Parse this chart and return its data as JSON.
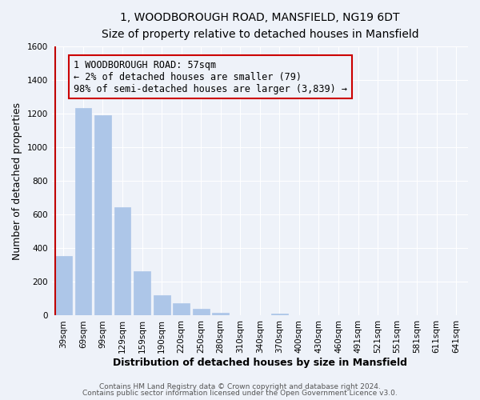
{
  "title": "1, WOODBOROUGH ROAD, MANSFIELD, NG19 6DT",
  "subtitle": "Size of property relative to detached houses in Mansfield",
  "xlabel": "Distribution of detached houses by size in Mansfield",
  "ylabel": "Number of detached properties",
  "bin_labels": [
    "39sqm",
    "69sqm",
    "99sqm",
    "129sqm",
    "159sqm",
    "190sqm",
    "220sqm",
    "250sqm",
    "280sqm",
    "310sqm",
    "340sqm",
    "370sqm",
    "400sqm",
    "430sqm",
    "460sqm",
    "491sqm",
    "521sqm",
    "551sqm",
    "581sqm",
    "611sqm",
    "641sqm"
  ],
  "bar_values": [
    355,
    1235,
    1190,
    645,
    265,
    120,
    75,
    38,
    18,
    0,
    0,
    14,
    0,
    0,
    0,
    0,
    0,
    0,
    0,
    0,
    0
  ],
  "bar_color": "#adc6e8",
  "highlight_bar_color": "#c00000",
  "ylim": [
    0,
    1600
  ],
  "yticks": [
    0,
    200,
    400,
    600,
    800,
    1000,
    1200,
    1400,
    1600
  ],
  "annotation_line1": "1 WOODBOROUGH ROAD: 57sqm",
  "annotation_line2": "← 2% of detached houses are smaller (79)",
  "annotation_line3": "98% of semi-detached houses are larger (3,839) →",
  "footer_line1": "Contains HM Land Registry data © Crown copyright and database right 2024.",
  "footer_line2": "Contains public sector information licensed under the Open Government Licence v3.0.",
  "background_color": "#eef2f9",
  "grid_color": "#ffffff",
  "box_edge_color": "#cc0000",
  "title_fontsize": 10,
  "subtitle_fontsize": 9,
  "axis_label_fontsize": 9,
  "tick_fontsize": 7.5,
  "annotation_fontsize": 8.5,
  "footer_fontsize": 6.5
}
